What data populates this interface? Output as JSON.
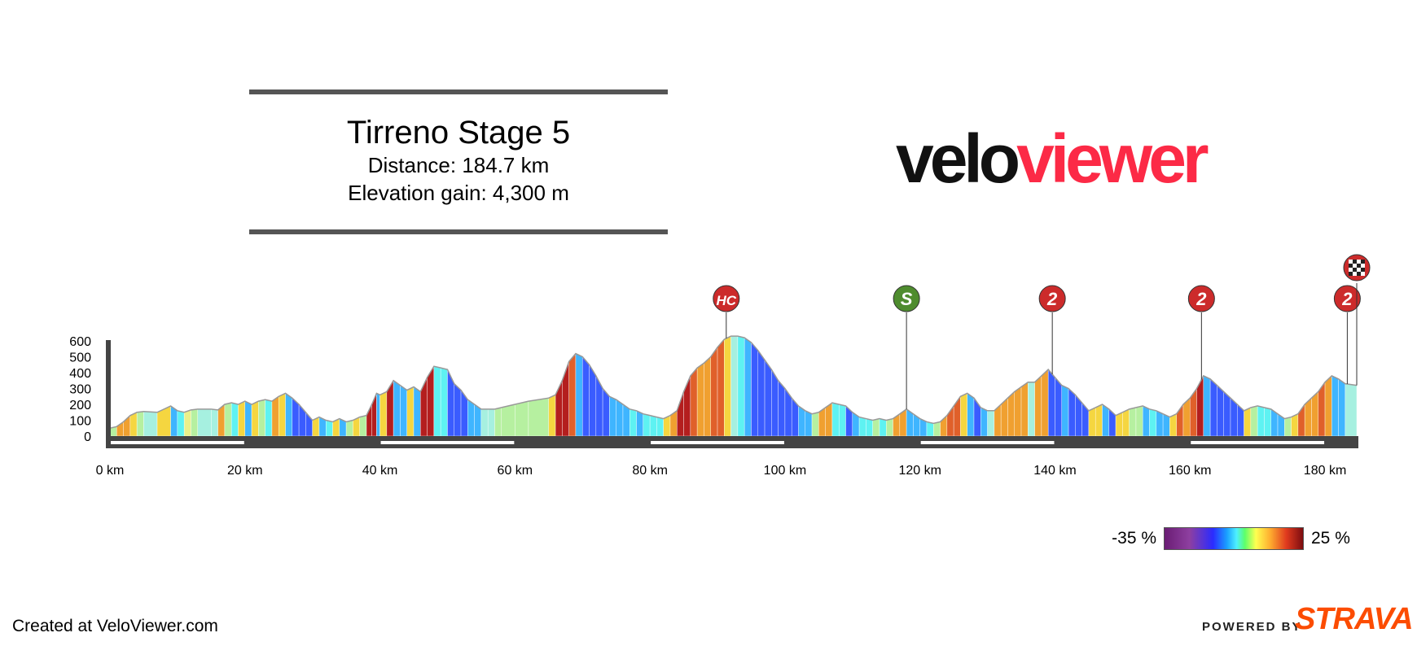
{
  "header": {
    "title": "Tirreno Stage 5",
    "distance": "Distance: 184.7 km",
    "elevation_gain": "Elevation gain: 4,300 m"
  },
  "logo": {
    "part1": "velo",
    "part2": "viewer"
  },
  "legend": {
    "min_label": "-35 %",
    "max_label": "25 %"
  },
  "footer": {
    "credit": "Created at VeloViewer.com",
    "powered_by": "POWERED BY",
    "strava": "STRAVA"
  },
  "chart_data": {
    "type": "area",
    "title": "Tirreno Stage 5",
    "xlabel": "",
    "ylabel": "",
    "xlim": [
      0,
      184.7
    ],
    "ylim": [
      0,
      600
    ],
    "x_ticks": [
      0,
      20,
      40,
      60,
      80,
      100,
      120,
      140,
      160,
      180
    ],
    "x_tick_labels": [
      "0 km",
      "20 km",
      "40 km",
      "60 km",
      "80 km",
      "100 km",
      "120 km",
      "140 km",
      "160 km",
      "180 km"
    ],
    "y_ticks": [
      0,
      100,
      200,
      300,
      400,
      500,
      600
    ],
    "y_tick_labels": [
      "0",
      "100",
      "200",
      "300",
      "400",
      "500",
      "600"
    ],
    "profile": [
      [
        0,
        50
      ],
      [
        1,
        60
      ],
      [
        2,
        90
      ],
      [
        3,
        130
      ],
      [
        4,
        150
      ],
      [
        5,
        155
      ],
      [
        7,
        150
      ],
      [
        9,
        190
      ],
      [
        10,
        160
      ],
      [
        11,
        150
      ],
      [
        12,
        165
      ],
      [
        13,
        170
      ],
      [
        15,
        170
      ],
      [
        16,
        165
      ],
      [
        17,
        200
      ],
      [
        18,
        210
      ],
      [
        19,
        200
      ],
      [
        20,
        220
      ],
      [
        21,
        200
      ],
      [
        22,
        220
      ],
      [
        23,
        230
      ],
      [
        24,
        220
      ],
      [
        25,
        250
      ],
      [
        26,
        270
      ],
      [
        27,
        240
      ],
      [
        28,
        200
      ],
      [
        29,
        150
      ],
      [
        30,
        100
      ],
      [
        31,
        120
      ],
      [
        32,
        100
      ],
      [
        33,
        90
      ],
      [
        34,
        110
      ],
      [
        35,
        90
      ],
      [
        36,
        100
      ],
      [
        37,
        120
      ],
      [
        38,
        130
      ],
      [
        38.8,
        200
      ],
      [
        39.5,
        270
      ],
      [
        40,
        260
      ],
      [
        41,
        280
      ],
      [
        42,
        350
      ],
      [
        43,
        320
      ],
      [
        44,
        290
      ],
      [
        45,
        310
      ],
      [
        46,
        280
      ],
      [
        47,
        370
      ],
      [
        48,
        440
      ],
      [
        49,
        430
      ],
      [
        50,
        420
      ],
      [
        51,
        330
      ],
      [
        52,
        290
      ],
      [
        53,
        230
      ],
      [
        54,
        200
      ],
      [
        55,
        170
      ],
      [
        56,
        170
      ],
      [
        57,
        170
      ],
      [
        58,
        180
      ],
      [
        60,
        200
      ],
      [
        62,
        220
      ],
      [
        65,
        240
      ],
      [
        66,
        260
      ],
      [
        67,
        350
      ],
      [
        68,
        470
      ],
      [
        69,
        520
      ],
      [
        70,
        500
      ],
      [
        71,
        450
      ],
      [
        72,
        380
      ],
      [
        73,
        300
      ],
      [
        74,
        250
      ],
      [
        75,
        230
      ],
      [
        76,
        200
      ],
      [
        77,
        170
      ],
      [
        78,
        160
      ],
      [
        79,
        140
      ],
      [
        80,
        130
      ],
      [
        81,
        120
      ],
      [
        82,
        110
      ],
      [
        83,
        130
      ],
      [
        84,
        160
      ],
      [
        85,
        280
      ],
      [
        86,
        380
      ],
      [
        87,
        430
      ],
      [
        88,
        460
      ],
      [
        89,
        500
      ],
      [
        90,
        560
      ],
      [
        91,
        610
      ],
      [
        92,
        630
      ],
      [
        93,
        630
      ],
      [
        94,
        620
      ],
      [
        95,
        590
      ],
      [
        96,
        540
      ],
      [
        97,
        480
      ],
      [
        98,
        420
      ],
      [
        99,
        350
      ],
      [
        100,
        300
      ],
      [
        101,
        240
      ],
      [
        102,
        190
      ],
      [
        103,
        160
      ],
      [
        104,
        140
      ],
      [
        105,
        150
      ],
      [
        106,
        180
      ],
      [
        107,
        210
      ],
      [
        108,
        200
      ],
      [
        109,
        190
      ],
      [
        110,
        150
      ],
      [
        111,
        120
      ],
      [
        112,
        110
      ],
      [
        113,
        100
      ],
      [
        114,
        110
      ],
      [
        115,
        100
      ],
      [
        116,
        110
      ],
      [
        117,
        140
      ],
      [
        118,
        170
      ],
      [
        119,
        140
      ],
      [
        120,
        110
      ],
      [
        121,
        90
      ],
      [
        122,
        80
      ],
      [
        123,
        90
      ],
      [
        124,
        130
      ],
      [
        125,
        190
      ],
      [
        126,
        250
      ],
      [
        127,
        270
      ],
      [
        128,
        240
      ],
      [
        129,
        180
      ],
      [
        130,
        160
      ],
      [
        131,
        160
      ],
      [
        132,
        200
      ],
      [
        133,
        240
      ],
      [
        134,
        280
      ],
      [
        135,
        310
      ],
      [
        136,
        340
      ],
      [
        137,
        340
      ],
      [
        138,
        380
      ],
      [
        139,
        420
      ],
      [
        140,
        370
      ],
      [
        141,
        320
      ],
      [
        142,
        300
      ],
      [
        143,
        260
      ],
      [
        144,
        210
      ],
      [
        145,
        160
      ],
      [
        146,
        180
      ],
      [
        147,
        200
      ],
      [
        148,
        170
      ],
      [
        149,
        130
      ],
      [
        150,
        150
      ],
      [
        151,
        170
      ],
      [
        152,
        180
      ],
      [
        153,
        190
      ],
      [
        154,
        170
      ],
      [
        155,
        160
      ],
      [
        156,
        140
      ],
      [
        157,
        120
      ],
      [
        158,
        140
      ],
      [
        159,
        200
      ],
      [
        160,
        240
      ],
      [
        161,
        300
      ],
      [
        162,
        380
      ],
      [
        163,
        360
      ],
      [
        164,
        320
      ],
      [
        165,
        280
      ],
      [
        166,
        240
      ],
      [
        167,
        200
      ],
      [
        168,
        160
      ],
      [
        169,
        180
      ],
      [
        170,
        190
      ],
      [
        171,
        180
      ],
      [
        172,
        170
      ],
      [
        173,
        140
      ],
      [
        174,
        110
      ],
      [
        175,
        120
      ],
      [
        176,
        140
      ],
      [
        177,
        200
      ],
      [
        178,
        240
      ],
      [
        179,
        280
      ],
      [
        180,
        340
      ],
      [
        181,
        380
      ],
      [
        182,
        360
      ],
      [
        183,
        330
      ],
      [
        184.7,
        320
      ]
    ],
    "climbs": [
      {
        "km": 91.3,
        "label": "HC",
        "color": "#cc2b2b"
      },
      {
        "km": 118,
        "label": "S",
        "color": "#4e8c2e"
      },
      {
        "km": 139.6,
        "label": "2",
        "color": "#cc2b2b"
      },
      {
        "km": 161.7,
        "label": "2",
        "color": "#cc2b2b"
      },
      {
        "km": 183.3,
        "label": "2",
        "color": "#cc2b2b"
      }
    ],
    "finish_km": 184.7
  }
}
